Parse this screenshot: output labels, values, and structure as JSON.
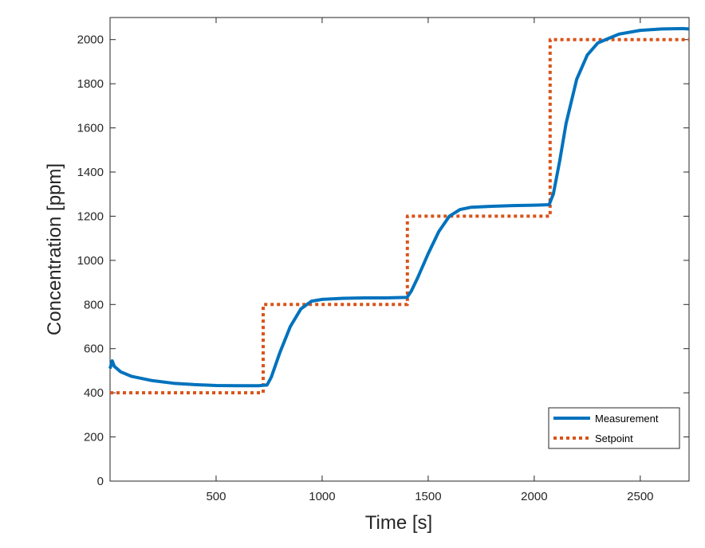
{
  "chart_data": {
    "type": "line",
    "title": "",
    "xlabel": "Time [s]",
    "ylabel": "Concentration [ppm]",
    "xlim": [
      0,
      2730
    ],
    "ylim": [
      0,
      2100
    ],
    "xticks": [
      500,
      1000,
      1500,
      2000,
      2500
    ],
    "yticks": [
      0,
      200,
      400,
      600,
      800,
      1000,
      1200,
      1400,
      1600,
      1800,
      2000
    ],
    "grid": false,
    "legend_position": "bottom-right",
    "series": [
      {
        "name": "Measurement",
        "color": "#0072BD",
        "style": "solid",
        "x": [
          0,
          10,
          20,
          50,
          100,
          200,
          300,
          400,
          500,
          600,
          700,
          740,
          760,
          800,
          850,
          900,
          950,
          1000,
          1100,
          1200,
          1300,
          1400,
          1420,
          1450,
          1500,
          1550,
          1600,
          1650,
          1700,
          1800,
          1900,
          2000,
          2070,
          2090,
          2120,
          2150,
          2200,
          2250,
          2300,
          2400,
          2500,
          2600,
          2700,
          2730
        ],
        "y": [
          510,
          545,
          520,
          495,
          475,
          455,
          443,
          437,
          433,
          432,
          432,
          435,
          470,
          580,
          700,
          780,
          815,
          823,
          828,
          830,
          830,
          832,
          860,
          920,
          1030,
          1130,
          1200,
          1230,
          1240,
          1245,
          1248,
          1250,
          1252,
          1300,
          1450,
          1620,
          1820,
          1930,
          1985,
          2025,
          2042,
          2048,
          2050,
          2048
        ]
      },
      {
        "name": "Setpoint",
        "color": "#D95319",
        "style": "dotted",
        "x": [
          0,
          722,
          722,
          1402,
          1402,
          2075,
          2075,
          2730
        ],
        "y": [
          400,
          400,
          800,
          800,
          1200,
          1200,
          2000,
          2000
        ]
      }
    ]
  }
}
